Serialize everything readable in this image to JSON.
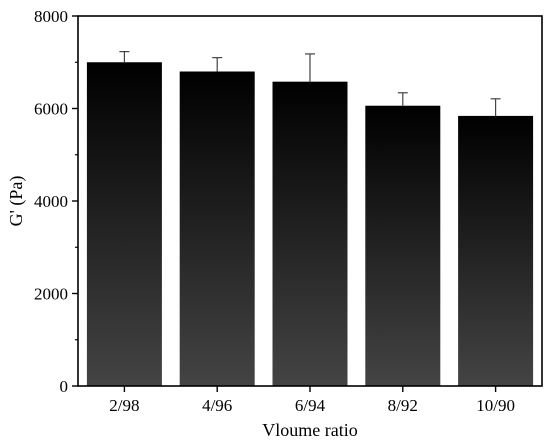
{
  "chart_data": {
    "type": "bar",
    "categories": [
      "2/98",
      "4/96",
      "6/94",
      "8/92",
      "10/90"
    ],
    "values": [
      7000,
      6800,
      6580,
      6060,
      5840
    ],
    "error_plus": [
      230,
      300,
      600,
      280,
      370
    ],
    "xlabel": "Vloume ratio",
    "ylabel": "G' (Pa)",
    "ylim": [
      0,
      8000
    ],
    "yticks": [
      0,
      2000,
      4000,
      6000,
      8000
    ],
    "grid": false,
    "legend": "none",
    "colors": {
      "bar_top": "#000000",
      "bar_bottom": "#444444",
      "axis": "#000000",
      "error_bar": "#444444"
    }
  }
}
